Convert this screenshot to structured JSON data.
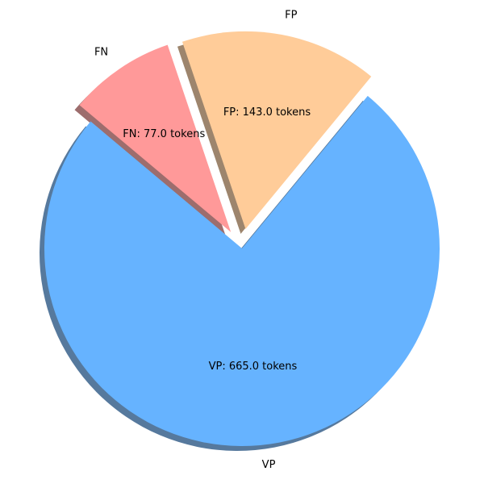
{
  "chart_data": {
    "type": "pie",
    "title": "",
    "slices": [
      {
        "label": "VP",
        "value": 665.0,
        "value_text": "VP: 665.0 tokens",
        "color": "#66b3ff",
        "exploded": false
      },
      {
        "label": "FP",
        "value": 143.0,
        "value_text": "FP: 143.0 tokens",
        "color": "#ffcc99",
        "exploded": true
      },
      {
        "label": "FN",
        "value": 77.0,
        "value_text": "FN: 77.0 tokens",
        "color": "#ff9999",
        "exploded": true
      }
    ],
    "shadow": true
  }
}
